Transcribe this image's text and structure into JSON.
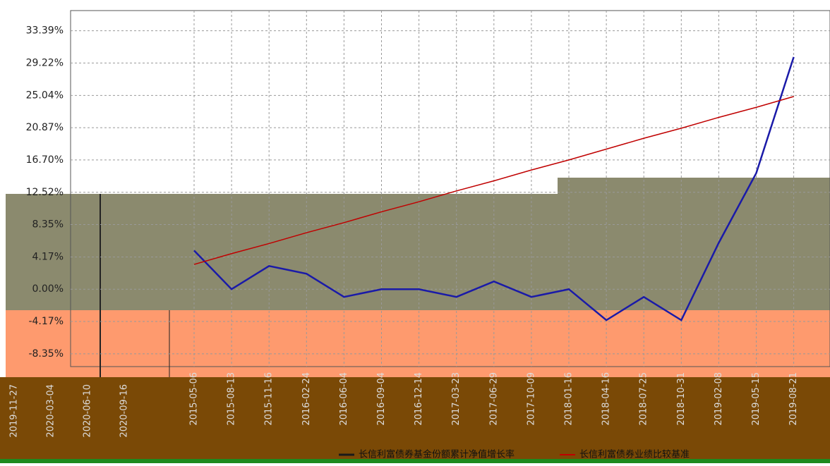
{
  "chart_data": {
    "type": "line",
    "categories": [
      "2015-05-06",
      "2015-08-13",
      "2015-11-16",
      "2016-02-24",
      "2016-06-04",
      "2016-09-04",
      "2016-12-14",
      "2017-03-23",
      "2017-06-29",
      "2017-10-09",
      "2018-01-16",
      "2018-04-16",
      "2018-07-25",
      "2018-10-31",
      "2019-02-08",
      "2019-05-15",
      "2019-08-21"
    ],
    "series": [
      {
        "name": "长信利富债券基金份额累计净值增长率",
        "color": "#1a1aa8",
        "values": [
          5,
          0,
          3,
          2,
          -1,
          0,
          0,
          -1,
          1,
          -1,
          0,
          -4,
          -1,
          -4,
          6,
          15,
          30
        ]
      },
      {
        "name": "长信利富债券业绩比较基准",
        "color": "#c00000",
        "values": [
          3.2,
          4.6,
          5.9,
          7.3,
          8.6,
          10.0,
          11.3,
          12.7,
          14.0,
          15.4,
          16.7,
          18.1,
          19.5,
          20.8,
          22.2,
          23.5,
          24.9
        ]
      }
    ],
    "ylim": [
      -10,
      36
    ],
    "yticks": [
      {
        "value": -8.35,
        "label": "-8.35%"
      },
      {
        "value": -4.17,
        "label": "-4.17%"
      },
      {
        "value": 0,
        "label": "0.00%"
      },
      {
        "value": 4.17,
        "label": "4.17%"
      },
      {
        "value": 8.35,
        "label": "8.35%"
      },
      {
        "value": 12.52,
        "label": "12.52%"
      },
      {
        "value": 16.7,
        "label": "16.70%"
      },
      {
        "value": 20.87,
        "label": "20.87%"
      },
      {
        "value": 25.04,
        "label": "25.04%"
      },
      {
        "value": 29.22,
        "label": "29.22%"
      },
      {
        "value": 33.39,
        "label": "33.39%"
      }
    ],
    "grid": true,
    "overlay_dates": [
      "2019-11-27",
      "2020-03-04",
      "2020-06-10",
      "2020-09-16"
    ]
  }
}
